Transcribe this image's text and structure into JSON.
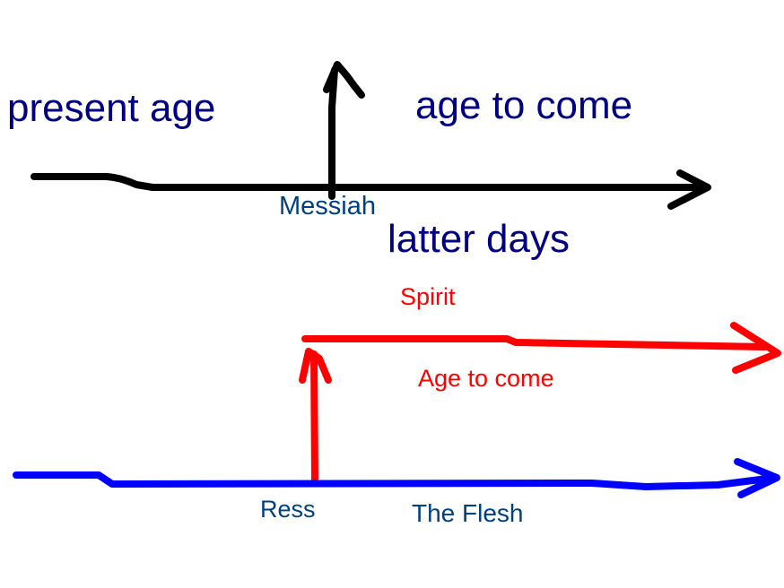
{
  "colors": {
    "ink_black": "#000000",
    "ink_red": "#ff0000",
    "ink_blue": "#0000ff",
    "text_navy": "#000080",
    "text_teal": "#004080",
    "text_red": "#ff0000"
  },
  "top_timeline": {
    "left_label": "present age",
    "right_label": "age to come",
    "pivot_label": "Messiah",
    "below_label": "latter days"
  },
  "bottom_timeline": {
    "upper_line_label": "Spirit",
    "upper_line_sublabel": "Age to come",
    "pivot_label": "Ress",
    "lower_line_label": "The Flesh"
  }
}
